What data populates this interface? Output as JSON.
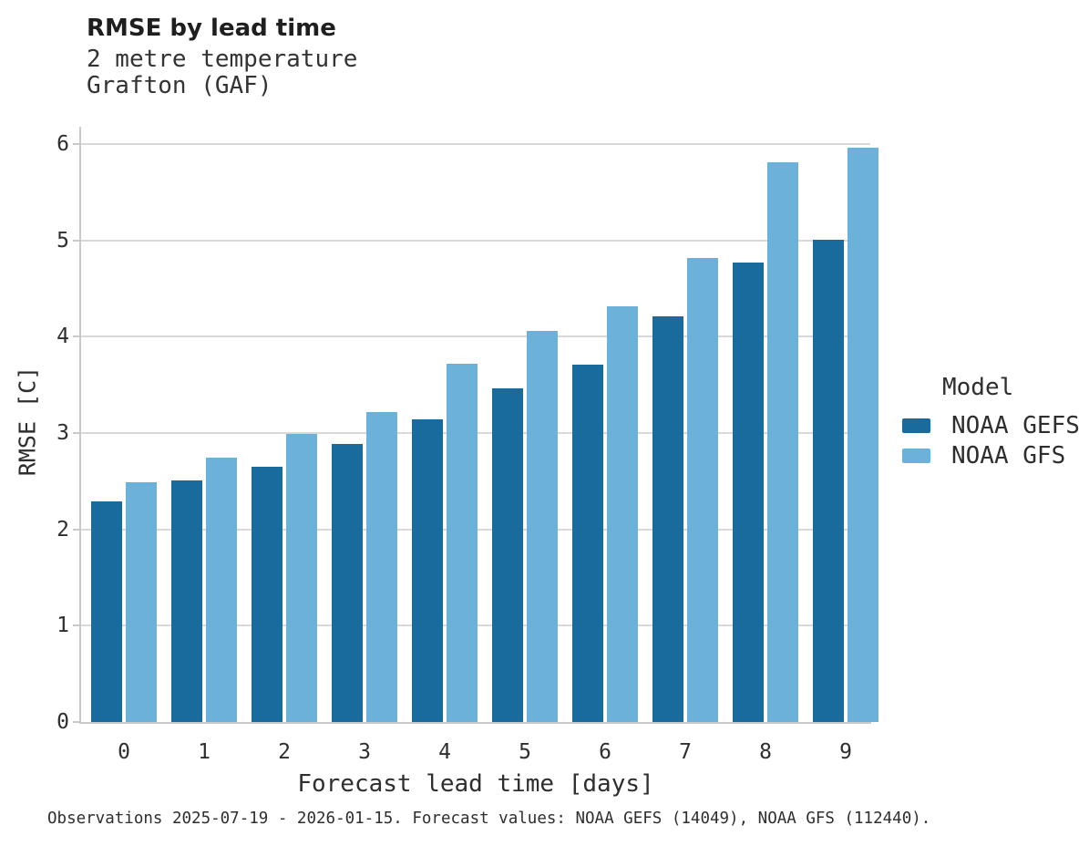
{
  "header": {
    "title": "RMSE by lead time",
    "subtitle_line1": "2 metre temperature",
    "subtitle_line2": "Grafton (GAF)"
  },
  "chart_data": {
    "type": "bar",
    "title": "RMSE by lead time",
    "subtitle": [
      "2 metre temperature",
      "Grafton (GAF)"
    ],
    "categories": [
      "0",
      "1",
      "2",
      "3",
      "4",
      "5",
      "6",
      "7",
      "8",
      "9"
    ],
    "series": [
      {
        "name": "NOAA GEFS",
        "color": "#1a6b9d",
        "values": [
          2.29,
          2.51,
          2.65,
          2.89,
          3.14,
          3.46,
          3.71,
          4.21,
          4.77,
          5.01
        ]
      },
      {
        "name": "NOAA GFS",
        "color": "#6cb1d9",
        "values": [
          2.49,
          2.74,
          2.99,
          3.22,
          3.72,
          4.06,
          4.32,
          4.82,
          5.81,
          5.96
        ]
      }
    ],
    "xlabel": "Forecast lead time [days]",
    "ylabel": "RMSE [C]",
    "ylim": [
      0,
      6.18
    ],
    "yticks": [
      0,
      1,
      2,
      3,
      4,
      5,
      6
    ],
    "grid": "horizontal",
    "legend_title": "Model",
    "legend_position": "right-center"
  },
  "colors": {
    "gridline": "#d8d8d8",
    "spine": "#c9c9c9",
    "text": "#2e2e2e"
  },
  "footer": {
    "note": "Observations 2025-07-19 - 2026-01-15. Forecast values: NOAA GEFS (14049), NOAA GFS (112440)."
  }
}
